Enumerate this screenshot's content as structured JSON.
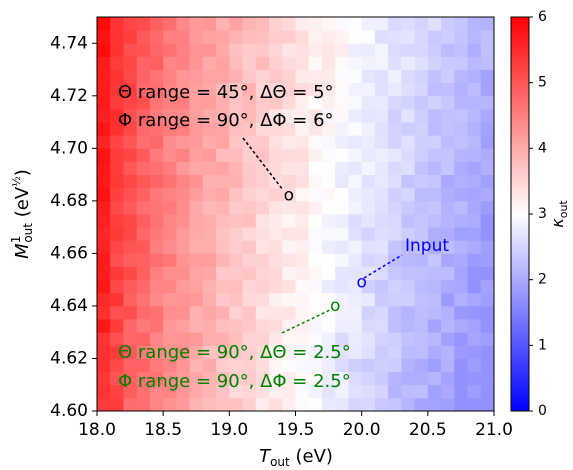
{
  "chart_data": {
    "type": "heatmap",
    "xlabel_main": "T",
    "xlabel_sub": "out",
    "xlabel_unit": " (eV)",
    "ylabel_main": "M",
    "ylabel_sup": "1",
    "ylabel_sub": "out",
    "ylabel_unit_open": " (eV",
    "ylabel_unit_exp": "½",
    "ylabel_unit_close": ")",
    "xlim": [
      18.0,
      21.0
    ],
    "ylim": [
      4.6,
      4.75
    ],
    "x_ticks": [
      "18.0",
      "18.5",
      "19.0",
      "19.5",
      "20.0",
      "20.5",
      "21.0"
    ],
    "y_ticks": [
      "4.60",
      "4.62",
      "4.64",
      "4.66",
      "4.68",
      "4.70",
      "4.72",
      "4.74"
    ],
    "colorbar": {
      "label_main": "κ",
      "label_sub": "out",
      "range": [
        0,
        6
      ],
      "ticks": [
        "0",
        "1",
        "2",
        "3",
        "4",
        "5",
        "6"
      ],
      "colors": {
        "low": "#0000ff",
        "mid": "#ffffff",
        "high": "#ff0000"
      }
    },
    "grid": {
      "nx": 30,
      "ny": 30
    },
    "markers": [
      {
        "name": "black",
        "x": 19.45,
        "y": 4.682,
        "symbol": "o",
        "color": "#000000"
      },
      {
        "name": "input",
        "x": 20.0,
        "y": 4.649,
        "symbol": "o",
        "color": "#0000ff"
      },
      {
        "name": "green",
        "x": 19.8,
        "y": 4.64,
        "symbol": "o",
        "color": "#008000"
      }
    ],
    "annotations": {
      "black_line1": "Θ  range = 45°, ΔΘ = 5°",
      "black_line2": "Φ  range = 90°,  ΔΦ = 6°",
      "input_label": "Input",
      "green_line1": "Θ  range = 90°, ΔΘ = 2.5°",
      "green_line2": "Φ  range = 90°,  ΔΦ = 2.5°"
    }
  }
}
